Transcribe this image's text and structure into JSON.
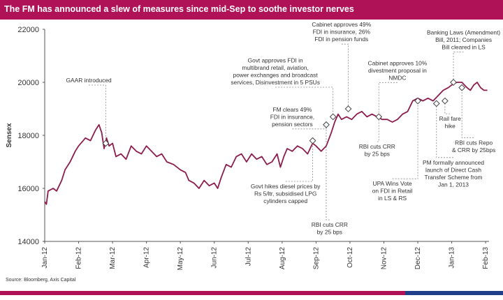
{
  "header": {
    "title": "The FM has announced a slew of measures since mid-Sep to soothe investor nerves"
  },
  "source": "Source: Bloomberg, Axis Capital",
  "chart_data": {
    "type": "line",
    "title": "The FM has announced a slew of measures since mid-Sep to soothe investor nerves",
    "ylabel": "Sensex",
    "xlabel": "",
    "ylim": [
      14000,
      22000
    ],
    "yticks": [
      14000,
      16000,
      18000,
      20000,
      22000
    ],
    "ytick_labels": [
      "14000",
      "16000",
      "18000",
      "20000",
      "22000"
    ],
    "xlim": [
      0,
      13.1
    ],
    "categories": [
      "Jan-12",
      "Feb-12",
      "Mar-12",
      "Apr-12",
      "May-12",
      "Jun-12",
      "Jul-12",
      "Aug-12",
      "Sep-12",
      "Oct-12",
      "Nov-12",
      "Dec-12",
      "Jan-13",
      "Feb-13"
    ],
    "grid": false,
    "series": [
      {
        "name": "Sensex",
        "color": "#8c1d4e",
        "points": [
          [
            0.0,
            15500
          ],
          [
            0.05,
            15400
          ],
          [
            0.1,
            15900
          ],
          [
            0.25,
            16000
          ],
          [
            0.35,
            15900
          ],
          [
            0.5,
            16300
          ],
          [
            0.6,
            16700
          ],
          [
            0.75,
            17000
          ],
          [
            0.9,
            17400
          ],
          [
            1.0,
            17600
          ],
          [
            1.2,
            17900
          ],
          [
            1.35,
            17800
          ],
          [
            1.5,
            18200
          ],
          [
            1.6,
            18400
          ],
          [
            1.68,
            18100
          ],
          [
            1.75,
            17500
          ],
          [
            1.82,
            17900
          ],
          [
            1.9,
            17600
          ],
          [
            2.0,
            17700
          ],
          [
            2.1,
            17200
          ],
          [
            2.25,
            17300
          ],
          [
            2.4,
            17100
          ],
          [
            2.55,
            17600
          ],
          [
            2.7,
            17400
          ],
          [
            2.85,
            17300
          ],
          [
            3.0,
            17600
          ],
          [
            3.15,
            17400
          ],
          [
            3.3,
            17200
          ],
          [
            3.45,
            17300
          ],
          [
            3.6,
            17000
          ],
          [
            3.8,
            16900
          ],
          [
            4.0,
            16700
          ],
          [
            4.15,
            16600
          ],
          [
            4.25,
            16300
          ],
          [
            4.4,
            16200
          ],
          [
            4.55,
            16000
          ],
          [
            4.7,
            16300
          ],
          [
            4.85,
            16100
          ],
          [
            5.0,
            16200
          ],
          [
            5.1,
            16000
          ],
          [
            5.2,
            16400
          ],
          [
            5.35,
            16900
          ],
          [
            5.5,
            16800
          ],
          [
            5.65,
            17200
          ],
          [
            5.8,
            17300
          ],
          [
            5.95,
            17000
          ],
          [
            6.1,
            17300
          ],
          [
            6.25,
            17100
          ],
          [
            6.4,
            17200
          ],
          [
            6.55,
            16900
          ],
          [
            6.7,
            17000
          ],
          [
            6.85,
            17300
          ],
          [
            6.95,
            16800
          ],
          [
            7.05,
            17200
          ],
          [
            7.15,
            17500
          ],
          [
            7.3,
            17400
          ],
          [
            7.45,
            17600
          ],
          [
            7.6,
            17500
          ],
          [
            7.75,
            17300
          ],
          [
            7.9,
            17700
          ],
          [
            8.0,
            17600
          ],
          [
            8.15,
            17400
          ],
          [
            8.3,
            17600
          ],
          [
            8.45,
            18100
          ],
          [
            8.55,
            18500
          ],
          [
            8.65,
            18800
          ],
          [
            8.75,
            18600
          ],
          [
            8.9,
            18700
          ],
          [
            9.05,
            18600
          ],
          [
            9.2,
            18800
          ],
          [
            9.35,
            18900
          ],
          [
            9.5,
            18700
          ],
          [
            9.65,
            18800
          ],
          [
            9.8,
            18700
          ],
          [
            9.95,
            18600
          ],
          [
            10.1,
            18600
          ],
          [
            10.25,
            18500
          ],
          [
            10.4,
            18600
          ],
          [
            10.55,
            18800
          ],
          [
            10.7,
            18900
          ],
          [
            10.85,
            19300
          ],
          [
            11.0,
            19400
          ],
          [
            11.15,
            19300
          ],
          [
            11.3,
            19400
          ],
          [
            11.45,
            19300
          ],
          [
            11.6,
            19500
          ],
          [
            11.75,
            19700
          ],
          [
            11.9,
            19800
          ],
          [
            12.0,
            19900
          ],
          [
            12.15,
            20000
          ],
          [
            12.3,
            20000
          ],
          [
            12.45,
            19800
          ],
          [
            12.55,
            19700
          ],
          [
            12.65,
            19900
          ],
          [
            12.75,
            20000
          ],
          [
            12.85,
            19800
          ],
          [
            12.95,
            19700
          ],
          [
            13.05,
            19700
          ]
        ]
      }
    ],
    "event_markers": [
      [
        1.8,
        17700
      ],
      [
        7.9,
        17800
      ],
      [
        8.3,
        18400
      ],
      [
        8.5,
        18700
      ],
      [
        8.95,
        19000
      ],
      [
        9.85,
        18700
      ],
      [
        11.0,
        19300
      ],
      [
        11.55,
        19200
      ],
      [
        11.8,
        19300
      ],
      [
        12.05,
        20000
      ],
      [
        12.3,
        19800
      ]
    ],
    "annotations": [
      {
        "lines": [
          "GAAR introduced"
        ],
        "align": "middle",
        "at": [
          1.8,
          17700
        ],
        "text_at": [
          1.3,
          20000
        ]
      },
      {
        "lines": [
          "Govt approves FDI in",
          "multibrand retail, aviation,",
          "power exchanges and broadcast",
          "services, Disinvestment in 5 PSUs"
        ],
        "align": "middle",
        "at": [
          8.5,
          18700
        ],
        "text_at": [
          6.8,
          20750
        ]
      },
      {
        "lines": [
          "Cabinet approves 49%",
          "FDI in insurance, 26%",
          "FDI in pension funds"
        ],
        "align": "middle",
        "at": [
          8.95,
          19000
        ],
        "text_at": [
          8.75,
          22100
        ]
      },
      {
        "lines": [
          "Banking Laws (Amendment)",
          "Bill, 2011; Companies",
          "Bill cleared in LS"
        ],
        "align": "middle",
        "at": [
          12.05,
          20000
        ],
        "text_at": [
          12.35,
          21800
        ]
      },
      {
        "lines": [
          "Cabinet approves 10%",
          "divestment proposal in",
          "NMDC"
        ],
        "align": "middle",
        "at": [
          9.85,
          18700
        ],
        "text_at": [
          10.4,
          20650
        ]
      },
      {
        "lines": [
          "FM clears 49%",
          "FDI in insurance,",
          "pension sectors"
        ],
        "align": "middle",
        "at": [
          8.3,
          18400
        ],
        "text_at": [
          7.3,
          18900
        ]
      },
      {
        "lines": [
          "RBI cuts CRR",
          "by 25 bps"
        ],
        "align": "middle",
        "at": [
          9.85,
          18700
        ],
        "text_at": [
          9.8,
          17500
        ]
      },
      {
        "lines": [
          "Govt hikes diesel prices by",
          "Rs 5/ltr, subsidised LPG",
          "cylinders capped"
        ],
        "align": "middle",
        "at": [
          7.9,
          17800
        ],
        "text_at": [
          7.1,
          16000
        ]
      },
      {
        "lines": [
          "RBI cuts CRR",
          "by 25 bps"
        ],
        "align": "middle",
        "at": [
          8.3,
          18400
        ],
        "text_at": [
          8.4,
          14550
        ]
      },
      {
        "lines": [
          "UPA Wins Vote",
          "on FDI in Retail",
          "in LS & RS"
        ],
        "align": "middle",
        "at": [
          11.0,
          19300
        ],
        "text_at": [
          10.25,
          16100
        ]
      },
      {
        "lines": [
          "Rail fare",
          "hike"
        ],
        "align": "middle",
        "at": [
          11.8,
          19300
        ],
        "text_at": [
          11.95,
          18550
        ]
      },
      {
        "lines": [
          "RBI cuts Repo",
          "& CRR by 25bps"
        ],
        "align": "middle",
        "at": [
          12.3,
          19800
        ],
        "text_at": [
          12.65,
          17650
        ]
      },
      {
        "lines": [
          "PM formally announced",
          "launch of Direct Cash",
          "Transfer Scheme from",
          "Jan 1, 2013"
        ],
        "align": "middle",
        "at": [
          11.55,
          19200
        ],
        "text_at": [
          12.05,
          16900
        ]
      }
    ]
  }
}
